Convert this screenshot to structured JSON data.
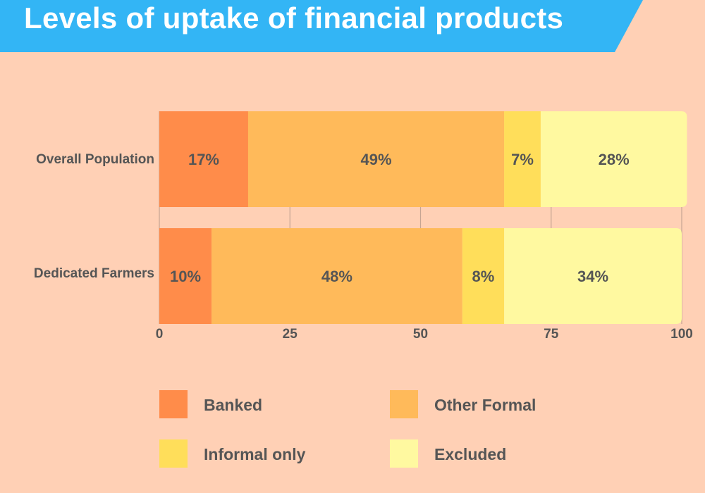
{
  "title": "Levels of uptake of financial products",
  "colors": {
    "background": "#FFD0B5",
    "banner": "#33B5F5",
    "Banked": "#FF8C4A",
    "Other Formal": "#FFBA5A",
    "Informal only": "#FFDE5A",
    "Excluded": "#FFF9A0"
  },
  "chart_data": {
    "type": "bar",
    "orientation": "horizontal",
    "stacked": true,
    "title": "Levels of uptake of financial products",
    "categories": [
      "Overall Population",
      "Dedicated Farmers"
    ],
    "series": [
      {
        "name": "Banked",
        "values": [
          17,
          10
        ],
        "labels": [
          "17%",
          "10%"
        ]
      },
      {
        "name": "Other Formal",
        "values": [
          49,
          48
        ],
        "labels": [
          "49%",
          "48%"
        ]
      },
      {
        "name": "Informal only",
        "values": [
          7,
          8
        ],
        "labels": [
          "7%",
          "8%"
        ]
      },
      {
        "name": "Excluded",
        "values": [
          28,
          34
        ],
        "labels": [
          "28%",
          "34%"
        ]
      }
    ],
    "xlim": [
      0,
      100
    ],
    "xticks": [
      "0",
      "25",
      "50",
      "75",
      "100"
    ],
    "grid": true,
    "legend": "bottom"
  }
}
